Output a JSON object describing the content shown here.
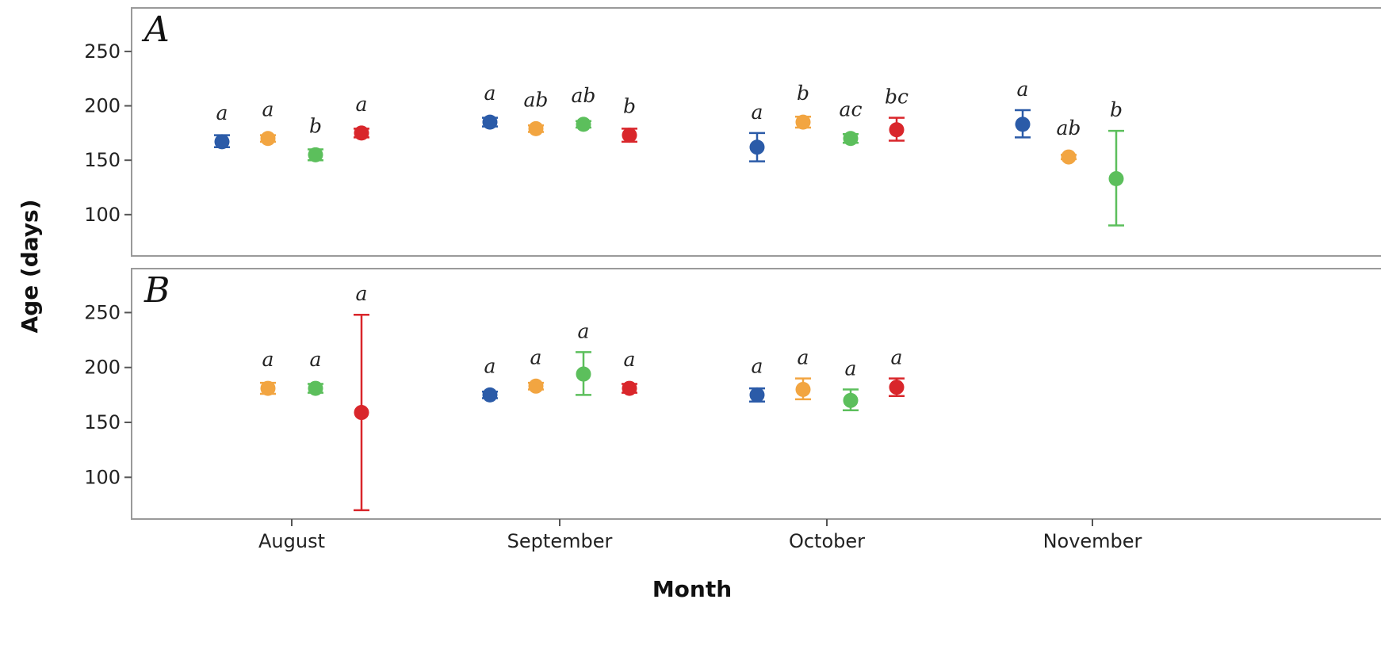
{
  "chart_data": {
    "type": "scatter",
    "xlabel": "Month",
    "ylabel": "Age (days)",
    "categories": [
      "August",
      "September",
      "October",
      "November"
    ],
    "yticks": [
      100,
      150,
      200,
      250
    ],
    "ylim": [
      62,
      290
    ],
    "grid": false,
    "series_colors": [
      "#2b5ba8",
      "#f2a541",
      "#5cbf5c",
      "#d9262b"
    ],
    "panels": [
      {
        "label": "A",
        "points": [
          {
            "category": "August",
            "series": 0,
            "y": 167,
            "ylow": 162,
            "yhigh": 173,
            "sig": "a"
          },
          {
            "category": "August",
            "series": 1,
            "y": 170,
            "ylow": 167,
            "yhigh": 173,
            "sig": "a"
          },
          {
            "category": "August",
            "series": 2,
            "y": 155,
            "ylow": 150,
            "yhigh": 160,
            "sig": "b"
          },
          {
            "category": "August",
            "series": 3,
            "y": 175,
            "ylow": 171,
            "yhigh": 179,
            "sig": "a"
          },
          {
            "category": "September",
            "series": 0,
            "y": 185,
            "ylow": 181,
            "yhigh": 189,
            "sig": "a"
          },
          {
            "category": "September",
            "series": 1,
            "y": 179,
            "ylow": 176,
            "yhigh": 182,
            "sig": "ab"
          },
          {
            "category": "September",
            "series": 2,
            "y": 183,
            "ylow": 180,
            "yhigh": 186,
            "sig": "ab"
          },
          {
            "category": "September",
            "series": 3,
            "y": 173,
            "ylow": 167,
            "yhigh": 179,
            "sig": "b"
          },
          {
            "category": "October",
            "series": 0,
            "y": 162,
            "ylow": 149,
            "yhigh": 175,
            "sig": "a"
          },
          {
            "category": "October",
            "series": 1,
            "y": 185,
            "ylow": 180,
            "yhigh": 190,
            "sig": "b"
          },
          {
            "category": "October",
            "series": 2,
            "y": 170,
            "ylow": 166,
            "yhigh": 174,
            "sig": "ac"
          },
          {
            "category": "October",
            "series": 3,
            "y": 178,
            "ylow": 168,
            "yhigh": 189,
            "sig": "bc"
          },
          {
            "category": "November",
            "series": 0,
            "y": 183,
            "ylow": 171,
            "yhigh": 196,
            "sig": "a"
          },
          {
            "category": "November",
            "series": 1,
            "y": 153,
            "ylow": 151,
            "yhigh": 155,
            "sig": "ab"
          },
          {
            "category": "November",
            "series": 2,
            "y": 133,
            "ylow": 90,
            "yhigh": 177,
            "sig": "b"
          }
        ]
      },
      {
        "label": "B",
        "points": [
          {
            "category": "August",
            "series": 1,
            "y": 181,
            "ylow": 176,
            "yhigh": 186,
            "sig": "a"
          },
          {
            "category": "August",
            "series": 2,
            "y": 181,
            "ylow": 177,
            "yhigh": 185,
            "sig": "a"
          },
          {
            "category": "August",
            "series": 3,
            "y": 159,
            "ylow": 70,
            "yhigh": 248,
            "sig": "a"
          },
          {
            "category": "September",
            "series": 0,
            "y": 175,
            "ylow": 172,
            "yhigh": 178,
            "sig": "a"
          },
          {
            "category": "September",
            "series": 1,
            "y": 183,
            "ylow": 180,
            "yhigh": 186,
            "sig": "a"
          },
          {
            "category": "September",
            "series": 2,
            "y": 194,
            "ylow": 175,
            "yhigh": 214,
            "sig": "a"
          },
          {
            "category": "September",
            "series": 3,
            "y": 181,
            "ylow": 177,
            "yhigh": 185,
            "sig": "a"
          },
          {
            "category": "October",
            "series": 0,
            "y": 175,
            "ylow": 169,
            "yhigh": 181,
            "sig": "a"
          },
          {
            "category": "October",
            "series": 1,
            "y": 180,
            "ylow": 171,
            "yhigh": 190,
            "sig": "a"
          },
          {
            "category": "October",
            "series": 2,
            "y": 170,
            "ylow": 161,
            "yhigh": 180,
            "sig": "a"
          },
          {
            "category": "October",
            "series": 3,
            "y": 182,
            "ylow": 174,
            "yhigh": 190,
            "sig": "a"
          }
        ]
      }
    ]
  }
}
